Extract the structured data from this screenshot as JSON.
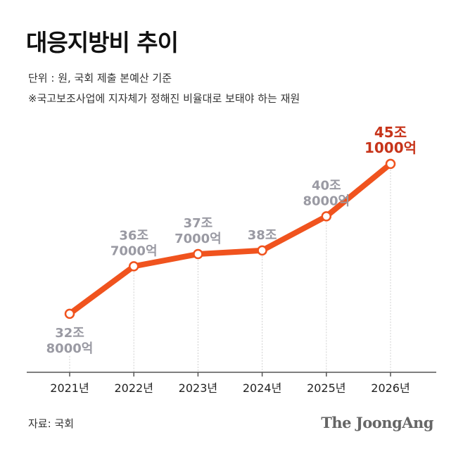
{
  "title": "대응지방비 추이",
  "unit_text": "단위 : 원, 국회 제출 본예산 기준",
  "note_text": "※국고보조사업에 지자체가 정해진 비율대로 보태야 하는 재원",
  "source_text": "자료: 국회",
  "brand_text": "The JoongAng",
  "colors": {
    "line": "#f0531e",
    "highlight": "#c7341a",
    "label": "#9a9aa3",
    "axis": "#555555"
  },
  "chart_data": {
    "type": "line",
    "categories": [
      "2021년",
      "2022년",
      "2023년",
      "2024년",
      "2025년",
      "2026년"
    ],
    "values": [
      32.8,
      36.7,
      37.7,
      38.0,
      40.8,
      45.1
    ],
    "ylim": [
      28,
      47
    ],
    "grid": false,
    "legend": "none",
    "data_labels": [
      [
        "32조",
        "8000억"
      ],
      [
        "36조",
        "7000억"
      ],
      [
        "37조",
        "7000억"
      ],
      [
        "38조"
      ],
      [
        "40조",
        "8000억"
      ],
      [
        "45조",
        "1000억"
      ]
    ],
    "label_position": [
      "below",
      "above",
      "above",
      "above",
      "above",
      "above"
    ],
    "highlight_index": 5
  }
}
